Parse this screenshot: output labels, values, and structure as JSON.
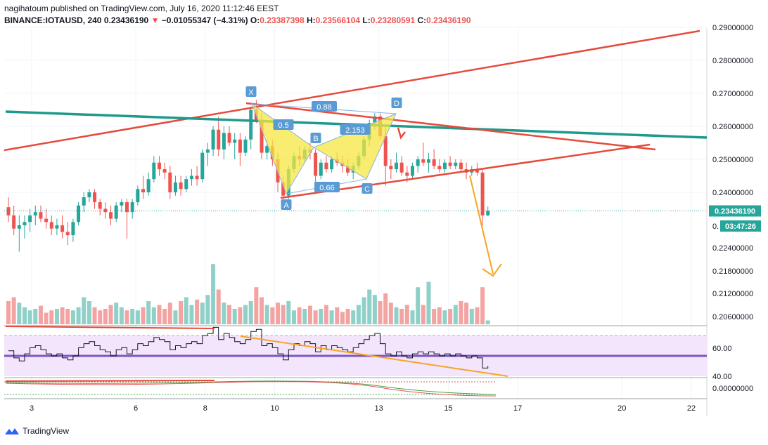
{
  "header": {
    "line1": "nagihatoum published on TradingView.com, July 16, 2020 11:12:46 EEST",
    "symbol": "BINANCE:IOTAUSD, 240",
    "last": "0.23436190",
    "change": "−0.01055347 (−4.31%)",
    "o_label": "O:",
    "o": "0.23387398",
    "h_label": "H:",
    "h": "0.23566104",
    "l_label": "L:",
    "l": "0.23280591",
    "c_label": "C:",
    "c": "0.23436190"
  },
  "footer": {
    "brand": "TradingView"
  },
  "colors": {
    "up": "#26a69a",
    "down": "#ef5350",
    "vol_up": "#8fd1c8",
    "vol_down": "#f4a3a3",
    "trend_red": "#e64a3b",
    "trend_teal": "#1e9a8a",
    "orange": "#f5a623",
    "pattern_fill": "#f5e642",
    "pattern_label": "#5b9bd5",
    "rsi_line": "#131722",
    "rsi_band": "#f3e5fb",
    "rsi_mid": "#7e57c2"
  },
  "price_badges": {
    "last": "0.23436190",
    "countdown": "03:47:26",
    "clip": "0."
  },
  "pattern_labels": {
    "x": "X",
    "a": "A",
    "b": "B",
    "c": "C",
    "d": "D",
    "r1": "0.5",
    "r2": "0.88",
    "r3": "2.153",
    "r4": "0.66"
  },
  "chart_data": {
    "type": "candlestick",
    "price_axis": {
      "ticks": [
        0.29,
        0.28,
        0.27,
        0.26,
        0.25,
        0.24,
        0.224,
        0.218,
        0.212,
        0.206
      ],
      "tick_labels": [
        "0.29000000",
        "0.28000000",
        "0.27000000",
        "0.26000000",
        "0.25000000",
        "0.24000000",
        "0.22400000",
        "0.21800000",
        "0.21200000",
        "0.20600000"
      ]
    },
    "rsi_axis": {
      "ticks": [
        60,
        40
      ],
      "tick_labels": [
        "60.00",
        "40.00"
      ]
    },
    "macd_axis": {
      "ticks": [
        0
      ],
      "tick_labels": [
        "0.00000000"
      ]
    },
    "x_axis": {
      "tick_labels": [
        "3",
        "6",
        "8",
        "10",
        "13",
        "15",
        "17",
        "20",
        "22"
      ],
      "tick_days": [
        3,
        6,
        8,
        10,
        13,
        15,
        17,
        20,
        22
      ]
    },
    "candles": [
      {
        "o": 0.2355,
        "h": 0.2385,
        "l": 0.231,
        "c": 0.233
      },
      {
        "o": 0.233,
        "h": 0.236,
        "l": 0.227,
        "c": 0.229
      },
      {
        "o": 0.229,
        "h": 0.233,
        "l": 0.222,
        "c": 0.23
      },
      {
        "o": 0.23,
        "h": 0.233,
        "l": 0.226,
        "c": 0.231
      },
      {
        "o": 0.231,
        "h": 0.235,
        "l": 0.228,
        "c": 0.233
      },
      {
        "o": 0.233,
        "h": 0.236,
        "l": 0.23,
        "c": 0.234
      },
      {
        "o": 0.234,
        "h": 0.236,
        "l": 0.231,
        "c": 0.232
      },
      {
        "o": 0.232,
        "h": 0.235,
        "l": 0.229,
        "c": 0.231
      },
      {
        "o": 0.231,
        "h": 0.233,
        "l": 0.227,
        "c": 0.229
      },
      {
        "o": 0.229,
        "h": 0.232,
        "l": 0.227,
        "c": 0.23
      },
      {
        "o": 0.23,
        "h": 0.233,
        "l": 0.226,
        "c": 0.228
      },
      {
        "o": 0.228,
        "h": 0.231,
        "l": 0.224,
        "c": 0.227
      },
      {
        "o": 0.227,
        "h": 0.232,
        "l": 0.225,
        "c": 0.231
      },
      {
        "o": 0.231,
        "h": 0.237,
        "l": 0.23,
        "c": 0.236
      },
      {
        "o": 0.236,
        "h": 0.24,
        "l": 0.234,
        "c": 0.2385
      },
      {
        "o": 0.2385,
        "h": 0.241,
        "l": 0.237,
        "c": 0.24
      },
      {
        "o": 0.24,
        "h": 0.241,
        "l": 0.235,
        "c": 0.237
      },
      {
        "o": 0.237,
        "h": 0.238,
        "l": 0.233,
        "c": 0.235
      },
      {
        "o": 0.235,
        "h": 0.237,
        "l": 0.232,
        "c": 0.234
      },
      {
        "o": 0.234,
        "h": 0.236,
        "l": 0.23,
        "c": 0.232
      },
      {
        "o": 0.232,
        "h": 0.237,
        "l": 0.231,
        "c": 0.236
      },
      {
        "o": 0.236,
        "h": 0.238,
        "l": 0.234,
        "c": 0.237
      },
      {
        "o": 0.237,
        "h": 0.238,
        "l": 0.226,
        "c": 0.234
      },
      {
        "o": 0.234,
        "h": 0.238,
        "l": 0.232,
        "c": 0.237
      },
      {
        "o": 0.237,
        "h": 0.242,
        "l": 0.236,
        "c": 0.241
      },
      {
        "o": 0.241,
        "h": 0.245,
        "l": 0.238,
        "c": 0.24
      },
      {
        "o": 0.24,
        "h": 0.246,
        "l": 0.239,
        "c": 0.244
      },
      {
        "o": 0.244,
        "h": 0.251,
        "l": 0.243,
        "c": 0.249
      },
      {
        "o": 0.249,
        "h": 0.251,
        "l": 0.245,
        "c": 0.247
      },
      {
        "o": 0.247,
        "h": 0.249,
        "l": 0.244,
        "c": 0.246
      },
      {
        "o": 0.246,
        "h": 0.248,
        "l": 0.238,
        "c": 0.24
      },
      {
        "o": 0.24,
        "h": 0.245,
        "l": 0.239,
        "c": 0.243
      },
      {
        "o": 0.243,
        "h": 0.245,
        "l": 0.239,
        "c": 0.241
      },
      {
        "o": 0.241,
        "h": 0.245,
        "l": 0.24,
        "c": 0.244
      },
      {
        "o": 0.244,
        "h": 0.247,
        "l": 0.242,
        "c": 0.245
      },
      {
        "o": 0.245,
        "h": 0.248,
        "l": 0.242,
        "c": 0.244
      },
      {
        "o": 0.244,
        "h": 0.253,
        "l": 0.243,
        "c": 0.252
      },
      {
        "o": 0.252,
        "h": 0.255,
        "l": 0.248,
        "c": 0.253
      },
      {
        "o": 0.253,
        "h": 0.26,
        "l": 0.251,
        "c": 0.259
      },
      {
        "o": 0.259,
        "h": 0.263,
        "l": 0.251,
        "c": 0.253
      },
      {
        "o": 0.253,
        "h": 0.26,
        "l": 0.25,
        "c": 0.258
      },
      {
        "o": 0.258,
        "h": 0.26,
        "l": 0.254,
        "c": 0.255
      },
      {
        "o": 0.255,
        "h": 0.258,
        "l": 0.25,
        "c": 0.256
      },
      {
        "o": 0.256,
        "h": 0.258,
        "l": 0.248,
        "c": 0.252
      },
      {
        "o": 0.252,
        "h": 0.257,
        "l": 0.251,
        "c": 0.256
      },
      {
        "o": 0.256,
        "h": 0.266,
        "l": 0.253,
        "c": 0.265
      },
      {
        "o": 0.265,
        "h": 0.268,
        "l": 0.261,
        "c": 0.262
      },
      {
        "o": 0.262,
        "h": 0.264,
        "l": 0.25,
        "c": 0.252
      },
      {
        "o": 0.252,
        "h": 0.256,
        "l": 0.25,
        "c": 0.254
      },
      {
        "o": 0.254,
        "h": 0.256,
        "l": 0.248,
        "c": 0.25
      },
      {
        "o": 0.25,
        "h": 0.252,
        "l": 0.24,
        "c": 0.243
      },
      {
        "o": 0.243,
        "h": 0.245,
        "l": 0.238,
        "c": 0.239
      },
      {
        "o": 0.239,
        "h": 0.248,
        "l": 0.238,
        "c": 0.247
      },
      {
        "o": 0.247,
        "h": 0.252,
        "l": 0.246,
        "c": 0.251
      },
      {
        "o": 0.251,
        "h": 0.254,
        "l": 0.248,
        "c": 0.25
      },
      {
        "o": 0.25,
        "h": 0.254,
        "l": 0.249,
        "c": 0.253
      },
      {
        "o": 0.253,
        "h": 0.255,
        "l": 0.25,
        "c": 0.252
      },
      {
        "o": 0.252,
        "h": 0.253,
        "l": 0.243,
        "c": 0.245
      },
      {
        "o": 0.245,
        "h": 0.25,
        "l": 0.244,
        "c": 0.249
      },
      {
        "o": 0.249,
        "h": 0.251,
        "l": 0.246,
        "c": 0.247
      },
      {
        "o": 0.247,
        "h": 0.251,
        "l": 0.246,
        "c": 0.25
      },
      {
        "o": 0.25,
        "h": 0.252,
        "l": 0.248,
        "c": 0.249
      },
      {
        "o": 0.249,
        "h": 0.251,
        "l": 0.246,
        "c": 0.248
      },
      {
        "o": 0.248,
        "h": 0.25,
        "l": 0.245,
        "c": 0.246
      },
      {
        "o": 0.246,
        "h": 0.249,
        "l": 0.244,
        "c": 0.248
      },
      {
        "o": 0.248,
        "h": 0.252,
        "l": 0.247,
        "c": 0.251
      },
      {
        "o": 0.251,
        "h": 0.257,
        "l": 0.25,
        "c": 0.256
      },
      {
        "o": 0.256,
        "h": 0.262,
        "l": 0.254,
        "c": 0.261
      },
      {
        "o": 0.261,
        "h": 0.264,
        "l": 0.259,
        "c": 0.263
      },
      {
        "o": 0.263,
        "h": 0.264,
        "l": 0.256,
        "c": 0.257
      },
      {
        "o": 0.257,
        "h": 0.26,
        "l": 0.242,
        "c": 0.248
      },
      {
        "o": 0.248,
        "h": 0.25,
        "l": 0.244,
        "c": 0.247
      },
      {
        "o": 0.247,
        "h": 0.252,
        "l": 0.246,
        "c": 0.249
      },
      {
        "o": 0.249,
        "h": 0.251,
        "l": 0.245,
        "c": 0.246
      },
      {
        "o": 0.246,
        "h": 0.248,
        "l": 0.243,
        "c": 0.245
      },
      {
        "o": 0.245,
        "h": 0.249,
        "l": 0.244,
        "c": 0.248
      },
      {
        "o": 0.248,
        "h": 0.251,
        "l": 0.246,
        "c": 0.25
      },
      {
        "o": 0.25,
        "h": 0.255,
        "l": 0.248,
        "c": 0.249
      },
      {
        "o": 0.249,
        "h": 0.252,
        "l": 0.246,
        "c": 0.25
      },
      {
        "o": 0.25,
        "h": 0.253,
        "l": 0.247,
        "c": 0.248
      },
      {
        "o": 0.248,
        "h": 0.25,
        "l": 0.246,
        "c": 0.247
      },
      {
        "o": 0.247,
        "h": 0.25,
        "l": 0.246,
        "c": 0.249
      },
      {
        "o": 0.249,
        "h": 0.251,
        "l": 0.247,
        "c": 0.248
      },
      {
        "o": 0.248,
        "h": 0.25,
        "l": 0.247,
        "c": 0.249
      },
      {
        "o": 0.249,
        "h": 0.25,
        "l": 0.246,
        "c": 0.247
      },
      {
        "o": 0.247,
        "h": 0.249,
        "l": 0.244,
        "c": 0.246
      },
      {
        "o": 0.246,
        "h": 0.248,
        "l": 0.245,
        "c": 0.247
      },
      {
        "o": 0.247,
        "h": 0.249,
        "l": 0.245,
        "c": 0.246
      },
      {
        "o": 0.246,
        "h": 0.247,
        "l": 0.23,
        "c": 0.233
      },
      {
        "o": 0.233,
        "h": 0.2357,
        "l": 0.2328,
        "c": 0.2344
      }
    ],
    "volumes": [
      0.3,
      0.35,
      0.28,
      0.22,
      0.18,
      0.2,
      0.24,
      0.15,
      0.18,
      0.2,
      0.22,
      0.2,
      0.18,
      0.22,
      0.35,
      0.3,
      0.22,
      0.18,
      0.2,
      0.25,
      0.28,
      0.22,
      0.18,
      0.2,
      0.18,
      0.22,
      0.3,
      0.22,
      0.25,
      0.2,
      0.28,
      0.18,
      0.3,
      0.35,
      0.25,
      0.32,
      0.28,
      0.38,
      0.78,
      0.45,
      0.28,
      0.25,
      0.2,
      0.22,
      0.25,
      0.3,
      0.48,
      0.35,
      0.25,
      0.22,
      0.28,
      0.25,
      0.3,
      0.18,
      0.22,
      0.2,
      0.24,
      0.18,
      0.2,
      0.25,
      0.18,
      0.22,
      0.16,
      0.2,
      0.18,
      0.25,
      0.35,
      0.45,
      0.38,
      0.3,
      0.4,
      0.28,
      0.22,
      0.2,
      0.25,
      0.18,
      0.48,
      0.25,
      0.55,
      0.2,
      0.22,
      0.18,
      0.2,
      0.25,
      0.3,
      0.28,
      0.2,
      0.22,
      0.48,
      0.05
    ],
    "rsi": [
      55,
      48,
      45,
      52,
      58,
      60,
      56,
      52,
      50,
      52,
      48,
      46,
      50,
      58,
      62,
      64,
      60,
      56,
      54,
      50,
      56,
      58,
      52,
      56,
      62,
      60,
      64,
      68,
      66,
      64,
      56,
      60,
      58,
      62,
      64,
      62,
      70,
      72,
      78,
      66,
      72,
      68,
      64,
      62,
      66,
      74,
      76,
      60,
      62,
      58,
      52,
      46,
      56,
      62,
      60,
      64,
      62,
      54,
      60,
      56,
      60,
      58,
      56,
      54,
      58,
      62,
      66,
      70,
      72,
      62,
      52,
      50,
      54,
      50,
      48,
      52,
      54,
      52,
      54,
      52,
      50,
      52,
      50,
      52,
      50,
      48,
      50,
      48,
      38,
      40
    ],
    "levels": {
      "last_price": 0.2343619,
      "rsi_upper": 70,
      "rsi_lower": 30,
      "rsi_mid": 50
    }
  }
}
